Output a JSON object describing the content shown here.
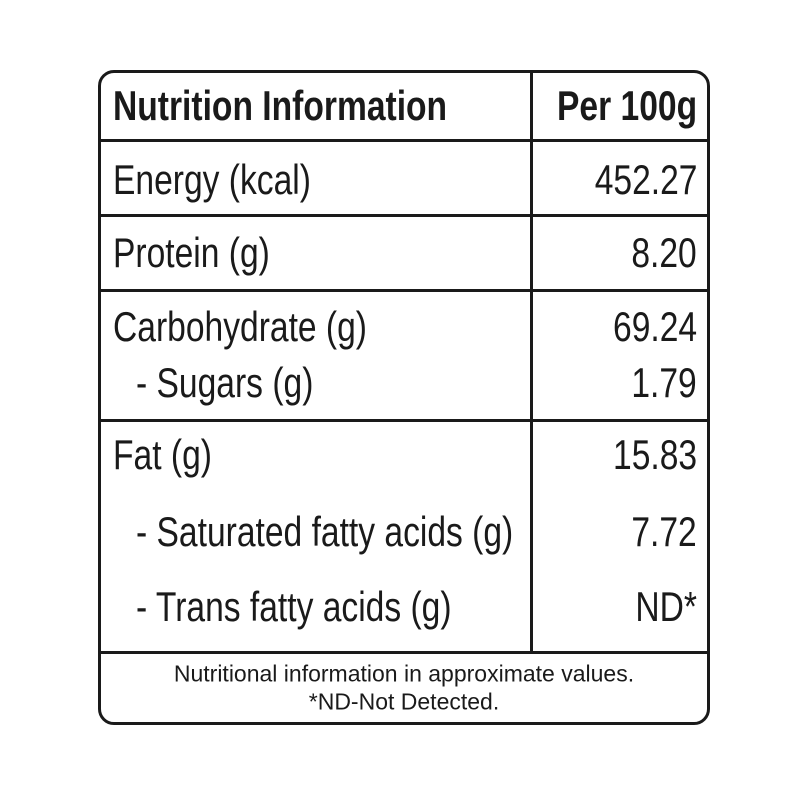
{
  "header": {
    "title": "Nutrition Information",
    "column": "Per 100g"
  },
  "sections": [
    {
      "rows": [
        {
          "label": "Energy (kcal)",
          "value": "452.27"
        }
      ]
    },
    {
      "rows": [
        {
          "label": "Protein (g)",
          "value": "8.20"
        }
      ]
    },
    {
      "rows": [
        {
          "label": "Carbohydrate (g)",
          "value": "69.24"
        },
        {
          "label": "- Sugars (g)",
          "value": "1.79"
        }
      ]
    },
    {
      "rows": [
        {
          "label": "Fat (g)",
          "value": "15.83"
        },
        {
          "label": "- Saturated fatty acids (g)",
          "value": "7.72"
        },
        {
          "label": "- Trans fatty acids (g)",
          "value": "ND*"
        }
      ]
    }
  ],
  "footnote": [
    "Nutritional information in approximate values.",
    "*ND-Not Detected."
  ]
}
